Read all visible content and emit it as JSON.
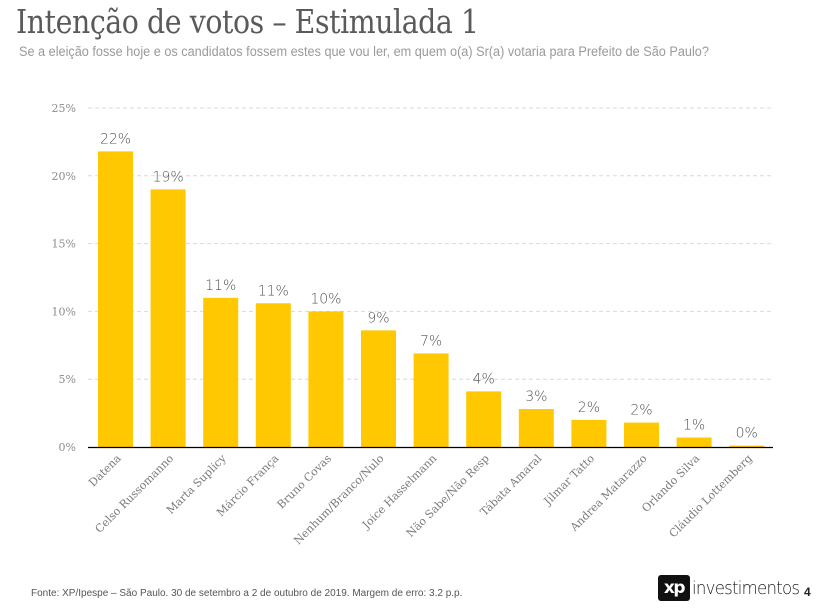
{
  "header": {
    "title": "Intenção de votos – Estimulada 1",
    "subtitle": "Se a eleição fosse hoje e os candidatos fossem estes que vou ler, em quem o(a) Sr(a) votaria para Prefeito de São Paulo?"
  },
  "footer": {
    "source": "Fonte: XP/Ipespe – São Paulo. 30 de setembro a 2 de outubro de 2019. Margem de erro: 3.2 p.p.",
    "logo_mark": "xp",
    "logo_text": "investimentos",
    "page_number": "4"
  },
  "colors": {
    "bar": "#FFC800",
    "grid": "#d9d9d9",
    "axis": "#000000"
  },
  "chart_data": {
    "type": "bar",
    "title": "Intenção de votos – Estimulada 1",
    "xlabel": "",
    "ylabel": "",
    "ylim": [
      0,
      25
    ],
    "yticks": [
      0,
      5,
      10,
      15,
      20,
      25
    ],
    "ytick_labels": [
      "0%",
      "5%",
      "10%",
      "15%",
      "20%",
      "25%"
    ],
    "grid": true,
    "grid_style": "dashed",
    "legend": "none",
    "categories": [
      "Datena",
      "Celso Russomanno",
      "Marta Suplicy",
      "Márcio França",
      "Bruno Covas",
      "Nenhum/Branco/Nulo",
      "Joice Hasselmann",
      "Não Sabe/Não Resp",
      "Tábata Amaral",
      "Jilmar Tatto",
      "Andrea Matarazzo",
      "Orlando Silva",
      "Cláudio Lottemberg"
    ],
    "values": [
      21.8,
      19.0,
      11.0,
      10.6,
      10.0,
      8.6,
      6.9,
      4.1,
      2.8,
      2.0,
      1.8,
      0.7,
      0.1
    ],
    "data_labels": [
      "22%",
      "19%",
      "11%",
      "11%",
      "10%",
      "9%",
      "7%",
      "4%",
      "3%",
      "2%",
      "2%",
      "1%",
      "0%"
    ]
  }
}
